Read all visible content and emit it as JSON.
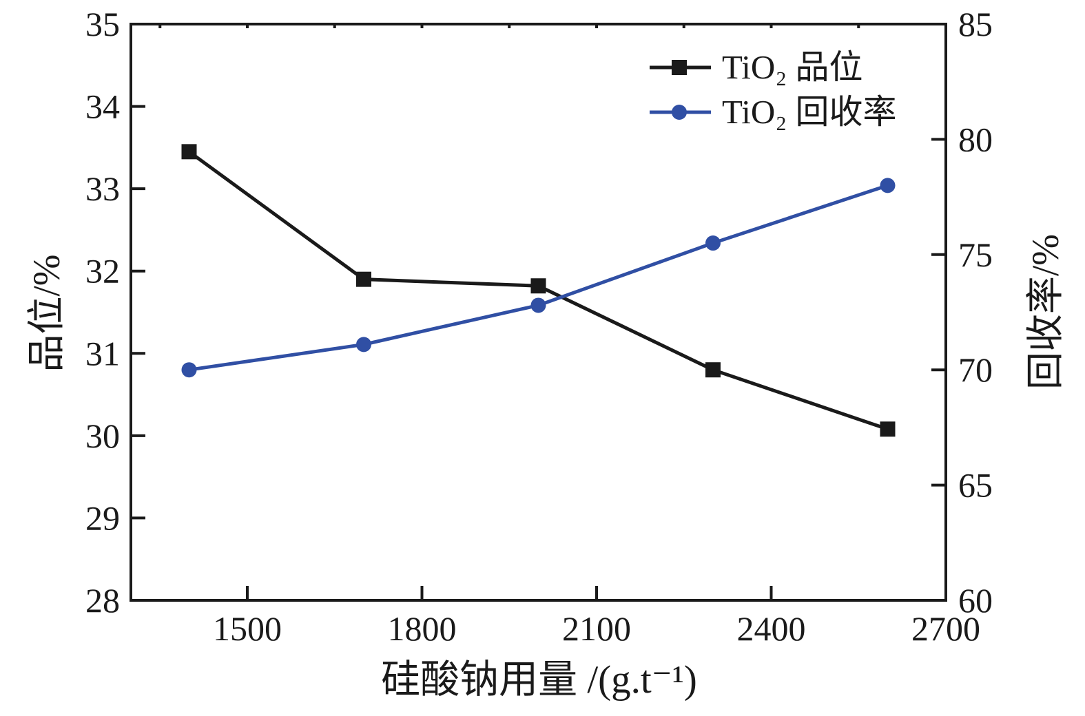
{
  "chart_data": {
    "type": "line",
    "x": [
      1400,
      1700,
      2000,
      2300,
      2600
    ],
    "series": [
      {
        "name": "TiO₂ 品位",
        "axis": "left",
        "color": "#1a1a1a",
        "marker": "square",
        "values": [
          33.45,
          31.9,
          31.82,
          30.8,
          30.08
        ]
      },
      {
        "name": "TiO₂ 回收率",
        "axis": "right",
        "color": "#304fa4",
        "marker": "circle",
        "values": [
          70.0,
          71.1,
          72.8,
          75.5,
          78.0
        ]
      }
    ],
    "xlabel": "硅酸钠用量 /(g.t⁻¹)",
    "ylabel_left": "品位/%",
    "ylabel_right": "回收率/%",
    "xlim": [
      1300,
      2700
    ],
    "x_ticks": [
      1500,
      1800,
      2100,
      2400,
      2700
    ],
    "x_minor_ticks_top": [
      1350,
      1500,
      1650,
      1800,
      1950,
      2100,
      2250,
      2400,
      2550
    ],
    "ylim_left": [
      28,
      35
    ],
    "y_ticks_left": [
      28,
      29,
      30,
      31,
      32,
      33,
      34,
      35
    ],
    "ylim_right": [
      60,
      85
    ],
    "y_ticks_right": [
      60,
      65,
      70,
      75,
      80,
      85
    ],
    "grid": false,
    "legend_position": "upper-right-inside",
    "axis_color": "#1a1a1a"
  }
}
